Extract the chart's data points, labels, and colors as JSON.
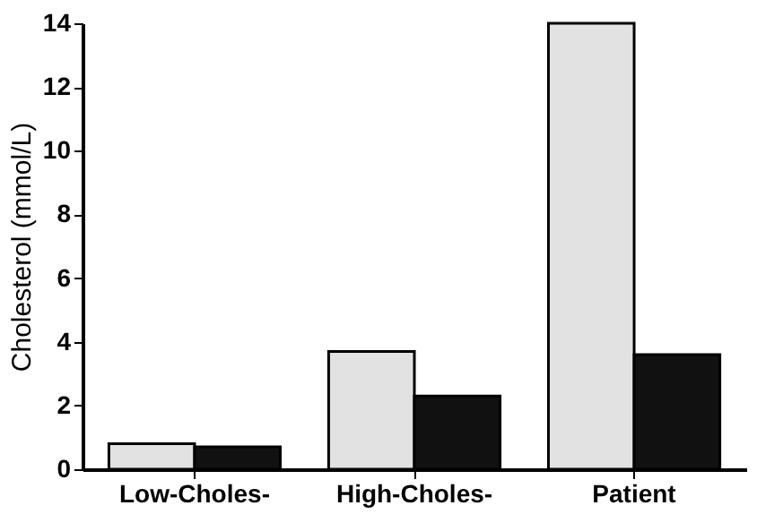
{
  "chart_data": {
    "type": "bar",
    "ylabel": "Cholesterol (mmol/L)",
    "categories": [
      "Low-Choles-",
      "High-Choles-",
      "Patient"
    ],
    "series": [
      {
        "color": "#e2e2e2",
        "values": [
          0.8,
          3.7,
          14.0
        ]
      },
      {
        "color": "#111111",
        "values": [
          0.7,
          2.3,
          3.6
        ]
      }
    ],
    "ylim": [
      0,
      14
    ],
    "yticks": [
      0,
      2,
      4,
      6,
      8,
      10,
      12,
      14
    ],
    "grid": false,
    "legend": false
  }
}
